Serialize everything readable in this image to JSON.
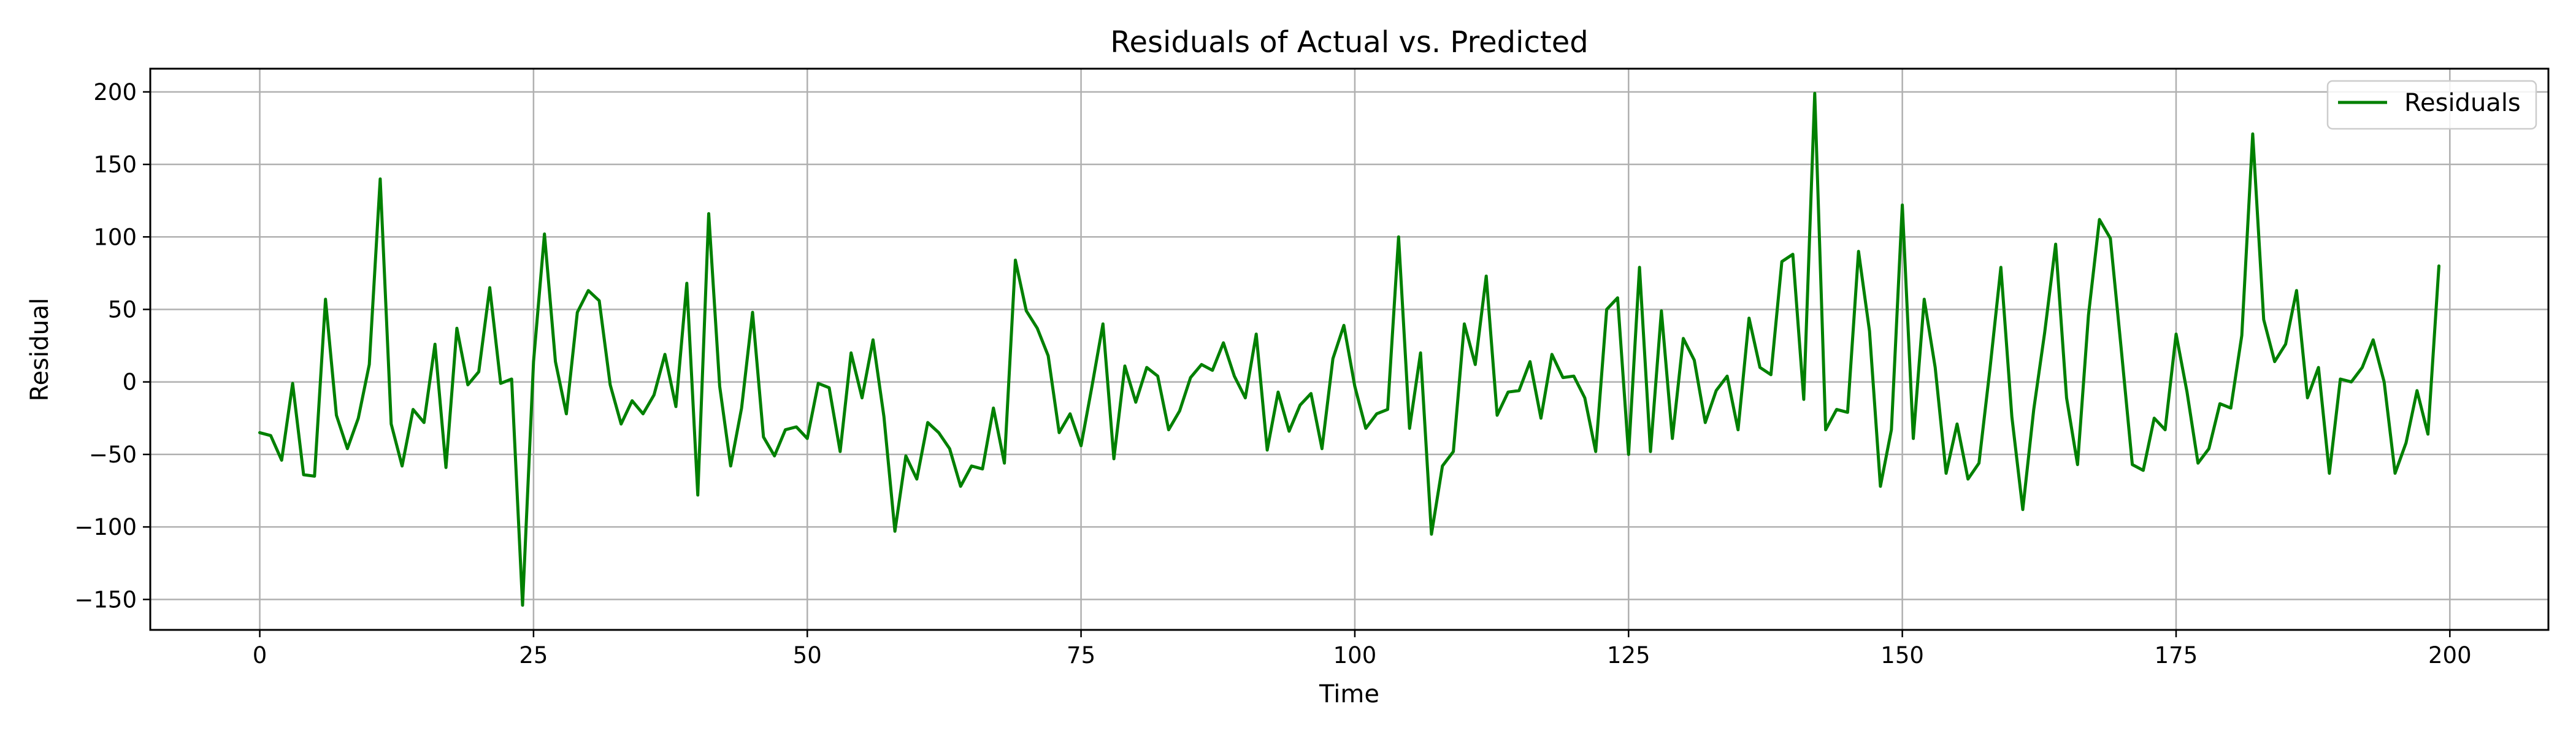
{
  "chart_data": {
    "type": "line",
    "title": "Residuals of Actual vs. Predicted",
    "xlabel": "Time",
    "ylabel": "Residual",
    "xlim": [
      -10,
      209
    ],
    "ylim": [
      -171,
      216
    ],
    "xticks": [
      0,
      25,
      50,
      75,
      100,
      125,
      150,
      175,
      200
    ],
    "yticks": [
      -150,
      -100,
      -50,
      0,
      50,
      100,
      150,
      200
    ],
    "grid": true,
    "legend_position": "top-right",
    "series": [
      {
        "name": "Residuals",
        "color": "#008000",
        "x": [
          0,
          1,
          2,
          3,
          4,
          5,
          6,
          7,
          8,
          9,
          10,
          11,
          12,
          13,
          14,
          15,
          16,
          17,
          18,
          19,
          20,
          21,
          22,
          23,
          24,
          25,
          26,
          27,
          28,
          29,
          30,
          31,
          32,
          33,
          34,
          35,
          36,
          37,
          38,
          39,
          40,
          41,
          42,
          43,
          44,
          45,
          46,
          47,
          48,
          49,
          50,
          51,
          52,
          53,
          54,
          55,
          56,
          57,
          58,
          59,
          60,
          61,
          62,
          63,
          64,
          65,
          66,
          67,
          68,
          69,
          70,
          71,
          72,
          73,
          74,
          75,
          76,
          77,
          78,
          79,
          80,
          81,
          82,
          83,
          84,
          85,
          86,
          87,
          88,
          89,
          90,
          91,
          92,
          93,
          94,
          95,
          96,
          97,
          98,
          99,
          100,
          101,
          102,
          103,
          104,
          105,
          106,
          107,
          108,
          109,
          110,
          111,
          112,
          113,
          114,
          115,
          116,
          117,
          118,
          119,
          120,
          121,
          122,
          123,
          124,
          125,
          126,
          127,
          128,
          129,
          130,
          131,
          132,
          133,
          134,
          135,
          136,
          137,
          138,
          139,
          140,
          141,
          142,
          143,
          144,
          145,
          146,
          147,
          148,
          149,
          150,
          151,
          152,
          153,
          154,
          155,
          156,
          157,
          158,
          159,
          160,
          161,
          162,
          163,
          164,
          165,
          166,
          167,
          168,
          169,
          170,
          171,
          172,
          173,
          174,
          175,
          176,
          177,
          178,
          179,
          180,
          181,
          182,
          183,
          184,
          185,
          186,
          187,
          188,
          189,
          190,
          191,
          192,
          193,
          194,
          195,
          196,
          197,
          198,
          199
        ],
        "values": [
          -35,
          -37,
          -54,
          -1,
          -64,
          -65,
          57,
          -23,
          -46,
          -25,
          12,
          140,
          -29,
          -58,
          -19,
          -28,
          26,
          -59,
          37,
          -2,
          7,
          65,
          -1,
          2,
          -154,
          14,
          102,
          14,
          -22,
          48,
          63,
          56,
          -2,
          -29,
          -13,
          -22,
          -9,
          19,
          -17,
          68,
          -78,
          116,
          -3,
          -58,
          -18,
          48,
          -38,
          -51,
          -33,
          -31,
          -39,
          -1,
          -4,
          -48,
          20,
          -11,
          29,
          -24,
          -103,
          -51,
          -67,
          -28,
          -35,
          -46,
          -72,
          -58,
          -60,
          -18,
          -56,
          84,
          49,
          37,
          18,
          -35,
          -22,
          -44,
          -3,
          40,
          -53,
          11,
          -14,
          10,
          4,
          -33,
          -20,
          3,
          12,
          8,
          27,
          4,
          -11,
          33,
          -47,
          -7,
          -34,
          -16,
          -8,
          -46,
          16,
          39,
          -3,
          -32,
          -22,
          -19,
          100,
          -32,
          20,
          -105,
          -58,
          -48,
          40,
          12,
          73,
          -23,
          -7,
          -6,
          14,
          -25,
          19,
          3,
          4,
          -11,
          -48,
          50,
          58,
          -50,
          79,
          -48,
          49,
          -39,
          30,
          15,
          -28,
          -6,
          4,
          -33,
          44,
          10,
          5,
          83,
          88,
          -12,
          199,
          -33,
          -19,
          -21,
          90,
          35,
          -72,
          -33,
          122,
          -39,
          57,
          10,
          -63,
          -29,
          -67,
          -56,
          9,
          79,
          -24,
          -88,
          -19,
          34,
          95,
          -11,
          -57,
          46,
          112,
          99,
          22,
          -57,
          -61,
          -25,
          -33,
          33,
          -7,
          -56,
          -46,
          -15,
          -18,
          32,
          171,
          43,
          14,
          26,
          63,
          -11,
          10,
          -63,
          2,
          0,
          10,
          29,
          0,
          -63,
          -42,
          -6,
          -36,
          80
        ]
      }
    ]
  }
}
